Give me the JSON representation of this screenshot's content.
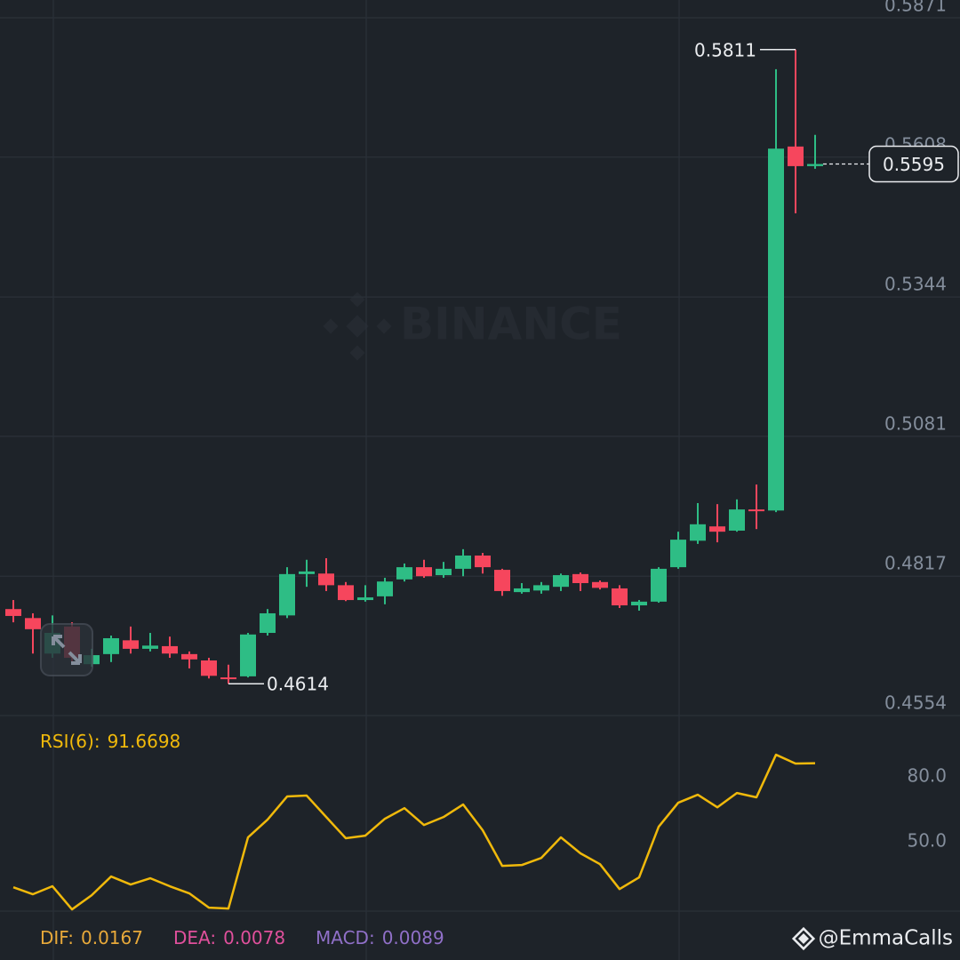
{
  "chart_data": [
    {
      "type": "candlestick",
      "open": [
        0.4755,
        0.4738,
        0.4671,
        0.4722,
        0.4651,
        0.467,
        0.4696,
        0.468,
        0.4685,
        0.467,
        0.4658,
        0.4626,
        0.4628,
        0.471,
        0.4743,
        0.4821,
        0.4822,
        0.48,
        0.4772,
        0.4779,
        0.4811,
        0.4834,
        0.4819,
        0.4831,
        0.4856,
        0.4829,
        0.4787,
        0.479,
        0.4797,
        0.4821,
        0.4806,
        0.4794,
        0.4762,
        0.4769,
        0.4834,
        0.4884,
        0.4911,
        0.4903,
        0.4943,
        0.4941,
        0.5628,
        0.5591
      ],
      "high": [
        0.4772,
        0.4747,
        0.4743,
        0.473,
        0.468,
        0.4705,
        0.4722,
        0.471,
        0.4703,
        0.4675,
        0.4663,
        0.465,
        0.471,
        0.4755,
        0.4834,
        0.4848,
        0.4851,
        0.4806,
        0.48,
        0.4814,
        0.4841,
        0.4848,
        0.4844,
        0.4868,
        0.4861,
        0.4831,
        0.4804,
        0.4806,
        0.4822,
        0.4824,
        0.4809,
        0.48,
        0.4772,
        0.4834,
        0.4901,
        0.4955,
        0.4953,
        0.4962,
        0.499,
        0.5774,
        0.5811,
        0.565
      ],
      "low": [
        0.473,
        0.4671,
        0.4663,
        0.4655,
        0.4646,
        0.4655,
        0.4671,
        0.4675,
        0.4663,
        0.4643,
        0.4624,
        0.4614,
        0.4626,
        0.4705,
        0.4738,
        0.4797,
        0.4789,
        0.477,
        0.4769,
        0.4764,
        0.4807,
        0.4814,
        0.4814,
        0.4817,
        0.4822,
        0.478,
        0.4784,
        0.4784,
        0.4789,
        0.4789,
        0.4792,
        0.4757,
        0.4752,
        0.4767,
        0.4831,
        0.4878,
        0.4881,
        0.4901,
        0.4906,
        0.4938,
        0.5502,
        0.5586
      ],
      "close": [
        0.4742,
        0.4717,
        0.471,
        0.4663,
        0.4668,
        0.47,
        0.468,
        0.4686,
        0.4671,
        0.466,
        0.4629,
        0.4623,
        0.4707,
        0.4747,
        0.4821,
        0.4826,
        0.48,
        0.4772,
        0.4777,
        0.4807,
        0.4834,
        0.4817,
        0.4831,
        0.4856,
        0.4834,
        0.4789,
        0.4794,
        0.48,
        0.4819,
        0.4804,
        0.4795,
        0.4762,
        0.4769,
        0.4831,
        0.4886,
        0.4915,
        0.4901,
        0.4943,
        0.494,
        0.5624,
        0.5591,
        0.5595
      ],
      "up_color": "#2ebd85",
      "down_color": "#f6465d",
      "ylim": [
        0.4554,
        0.5871
      ],
      "yticks": [
        0.5871,
        0.5608,
        0.5344,
        0.5081,
        0.4817,
        0.4554
      ],
      "grid": true
    },
    {
      "type": "line",
      "series": [
        {
          "name": "RSI(6):",
          "color": "#f0b90b",
          "values": [
            34.3,
            31.1,
            34.8,
            24.1,
            30.6,
            39.3,
            35.6,
            38.5,
            34.8,
            31.5,
            24.9,
            24.5,
            57.4,
            65.6,
            76.3,
            76.7,
            66.8,
            57.0,
            58.2,
            66.0,
            70.9,
            63.1,
            66.8,
            72.6,
            60.7,
            44.2,
            44.6,
            47.9,
            57.4,
            50.0,
            45.0,
            33.5,
            38.9,
            62.3,
            73.4,
            77.1,
            71.3,
            77.9,
            75.9,
            95.6,
            91.5,
            91.6698
          ]
        }
      ],
      "ylim": [
        23.3,
        109.6
      ],
      "yticks": [
        {
          "value": 80,
          "label": "80.0"
        },
        {
          "value": 50,
          "label": "50.0"
        }
      ]
    }
  ],
  "macd": [
    {
      "name": "DIF:",
      "value": 0.0167,
      "color": "#e8a93a"
    },
    {
      "name": "DEA:",
      "value": 0.0078,
      "color": "#e0509c"
    },
    {
      "name": "MACD:",
      "value": 0.0089,
      "color": "#9070c8"
    }
  ],
  "watermark": "BINANCE",
  "credit": "@EmmaCalls"
}
